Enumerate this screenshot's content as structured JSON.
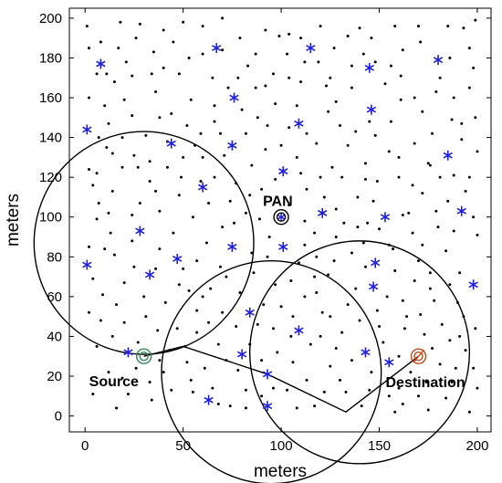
{
  "chart_data": {
    "type": "scatter",
    "xlabel": "meters",
    "ylabel": "meters",
    "xlim": [
      -8,
      207
    ],
    "ylim": [
      -8,
      205
    ],
    "xticks": [
      0,
      50,
      100,
      150,
      200
    ],
    "yticks": [
      0,
      20,
      40,
      60,
      80,
      100,
      120,
      140,
      160,
      180,
      200
    ],
    "grid": false,
    "colors": {
      "dots": "#000000",
      "stars": "#1f1fe0",
      "source": "#2e8b57",
      "destination": "#c04a1a",
      "pan": "#000000",
      "lines": "#000000"
    },
    "stars": [
      [
        8,
        177
      ],
      [
        1,
        144
      ],
      [
        1,
        76
      ],
      [
        28,
        93
      ],
      [
        33,
        71
      ],
      [
        47,
        79
      ],
      [
        44,
        137
      ],
      [
        60,
        115
      ],
      [
        67,
        185
      ],
      [
        76,
        160
      ],
      [
        75,
        136
      ],
      [
        75,
        85
      ],
      [
        84,
        52
      ],
      [
        80,
        31
      ],
      [
        63,
        8
      ],
      [
        93,
        5
      ],
      [
        93,
        21
      ],
      [
        101,
        123
      ],
      [
        101,
        85
      ],
      [
        109,
        43
      ],
      [
        109,
        147
      ],
      [
        115,
        185
      ],
      [
        121,
        102
      ],
      [
        145,
        175
      ],
      [
        146,
        154
      ],
      [
        153,
        100
      ],
      [
        148,
        77
      ],
      [
        147,
        65
      ],
      [
        143,
        32
      ],
      [
        155,
        27
      ],
      [
        180,
        179
      ],
      [
        185,
        131
      ],
      [
        192,
        103
      ],
      [
        198,
        66
      ],
      [
        22,
        32
      ]
    ],
    "circles": [
      {
        "cx": 30,
        "cy": 87,
        "r": 56
      },
      {
        "cx": 95,
        "cy": 22,
        "r": 56
      },
      {
        "cx": 140,
        "cy": 32,
        "r": 56
      }
    ],
    "route": [
      [
        30,
        30
      ],
      [
        50,
        35
      ],
      [
        93,
        21
      ],
      [
        133,
        2
      ],
      [
        170,
        30
      ]
    ],
    "source": {
      "x": 30,
      "y": 30,
      "label": "Source"
    },
    "destination": {
      "x": 170,
      "y": 30,
      "label": "Destination"
    },
    "pan": {
      "x": 100,
      "y": 100,
      "label": "PAN"
    },
    "dots": [
      [
        1,
        196
      ],
      [
        8,
        188
      ],
      [
        15,
        168
      ],
      [
        20,
        159
      ],
      [
        24,
        151
      ],
      [
        24,
        171
      ],
      [
        27,
        125
      ],
      [
        33,
        118
      ],
      [
        42,
        125
      ],
      [
        50,
        130
      ],
      [
        34,
        172
      ],
      [
        40,
        175
      ],
      [
        53,
        180
      ],
      [
        59,
        142
      ],
      [
        66,
        148
      ],
      [
        73,
        165
      ],
      [
        83,
        176
      ],
      [
        87,
        165
      ],
      [
        93,
        146
      ],
      [
        100,
        136
      ],
      [
        99,
        191
      ],
      [
        103,
        182
      ],
      [
        110,
        190
      ],
      [
        119,
        178
      ],
      [
        123,
        166
      ],
      [
        128,
        158
      ],
      [
        131,
        120
      ],
      [
        134,
        136
      ],
      [
        143,
        127
      ],
      [
        148,
        141
      ],
      [
        156,
        148
      ],
      [
        161,
        171
      ],
      [
        168,
        137
      ],
      [
        176,
        126
      ],
      [
        181,
        120
      ],
      [
        187,
        149
      ],
      [
        193,
        195
      ],
      [
        199,
        199
      ],
      [
        196,
        185
      ],
      [
        192,
        147
      ],
      [
        188,
        121
      ],
      [
        172,
        112
      ],
      [
        162,
        101
      ],
      [
        155,
        86
      ],
      [
        139,
        95
      ],
      [
        128,
        90
      ],
      [
        118,
        80
      ],
      [
        109,
        77
      ],
      [
        105,
        68
      ],
      [
        118,
        62
      ],
      [
        125,
        50
      ],
      [
        134,
        56
      ],
      [
        143,
        75
      ],
      [
        157,
        84
      ],
      [
        162,
        58
      ],
      [
        171,
        51
      ],
      [
        176,
        72
      ],
      [
        184,
        83
      ],
      [
        190,
        57
      ],
      [
        194,
        33
      ],
      [
        187,
        17
      ],
      [
        174,
        17
      ],
      [
        162,
        6
      ],
      [
        155,
        10
      ],
      [
        145,
        13
      ],
      [
        136,
        28
      ],
      [
        125,
        25
      ],
      [
        113,
        18
      ],
      [
        106,
        27
      ],
      [
        98,
        32
      ],
      [
        88,
        46
      ],
      [
        77,
        45
      ],
      [
        68,
        36
      ],
      [
        61,
        24
      ],
      [
        55,
        12
      ],
      [
        44,
        13
      ],
      [
        33,
        17
      ],
      [
        22,
        11
      ],
      [
        12,
        22
      ],
      [
        6,
        35
      ],
      [
        2,
        52
      ],
      [
        9,
        61
      ],
      [
        15,
        81
      ],
      [
        6,
        99
      ],
      [
        14,
        113
      ],
      [
        6,
        122
      ],
      [
        11,
        135
      ],
      [
        19,
        140
      ],
      [
        28,
        107
      ],
      [
        38,
        103
      ],
      [
        45,
        92
      ],
      [
        53,
        63
      ],
      [
        57,
        53
      ],
      [
        41,
        57
      ],
      [
        30,
        60
      ],
      [
        20,
        47
      ],
      [
        64,
        64
      ],
      [
        69,
        75
      ],
      [
        82,
        102
      ],
      [
        90,
        114
      ],
      [
        113,
        114
      ],
      [
        118,
        137
      ],
      [
        124,
        153
      ],
      [
        138,
        143
      ],
      [
        149,
        118
      ],
      [
        167,
        92
      ],
      [
        173,
        41
      ],
      [
        184,
        9
      ],
      [
        196,
        2
      ],
      [
        150,
        45
      ],
      [
        131,
        42
      ],
      [
        120,
        40
      ],
      [
        91,
        56
      ],
      [
        82,
        13
      ],
      [
        74,
        5
      ],
      [
        37,
        43
      ],
      [
        16,
        4
      ],
      [
        4,
        11
      ],
      [
        60,
        196
      ],
      [
        45,
        188
      ],
      [
        28,
        197
      ],
      [
        17,
        185
      ],
      [
        136,
        176
      ],
      [
        146,
        190
      ],
      [
        158,
        196
      ],
      [
        171,
        188
      ],
      [
        181,
        170
      ],
      [
        196,
        165
      ],
      [
        200,
        133
      ],
      [
        200,
        91
      ],
      [
        199,
        44
      ],
      [
        2,
        160
      ],
      [
        12,
        147
      ],
      [
        38,
        150
      ],
      [
        54,
        159
      ],
      [
        85,
        126
      ],
      [
        94,
        90
      ],
      [
        70,
        95
      ],
      [
        55,
        100
      ],
      [
        112,
        98
      ],
      [
        128,
        104
      ],
      [
        136,
        82
      ],
      [
        168,
        68
      ],
      [
        160,
        120
      ],
      [
        108,
        156
      ],
      [
        96,
        172
      ],
      [
        79,
        190
      ],
      [
        65,
        170
      ],
      [
        120,
        196
      ],
      [
        140,
        195
      ],
      [
        185,
        196
      ],
      [
        2,
        185
      ],
      [
        25,
        131
      ],
      [
        48,
        111
      ],
      [
        62,
        87
      ],
      [
        86,
        72
      ],
      [
        100,
        55
      ],
      [
        115,
        36
      ],
      [
        133,
        12
      ],
      [
        152,
        37
      ],
      [
        166,
        22
      ],
      [
        178,
        58
      ],
      [
        191,
        72
      ],
      [
        180,
        95
      ],
      [
        172,
        153
      ],
      [
        153,
        167
      ],
      [
        127,
        185
      ],
      [
        104,
        170
      ],
      [
        88,
        150
      ],
      [
        71,
        131
      ],
      [
        52,
        146
      ],
      [
        36,
        163
      ],
      [
        21,
        178
      ],
      [
        10,
        156
      ],
      [
        7,
        107
      ],
      [
        20,
        67
      ],
      [
        31,
        50
      ],
      [
        43,
        33
      ],
      [
        57,
        42
      ],
      [
        70,
        52
      ],
      [
        79,
        62
      ],
      [
        93,
        80
      ],
      [
        112,
        86
      ],
      [
        124,
        71
      ],
      [
        138,
        64
      ],
      [
        149,
        53
      ],
      [
        163,
        44
      ],
      [
        177,
        34
      ],
      [
        189,
        24
      ],
      [
        200,
        14
      ],
      [
        196,
        120
      ],
      [
        185,
        108
      ],
      [
        167,
        116
      ],
      [
        147,
        108
      ],
      [
        126,
        125
      ],
      [
        108,
        130
      ],
      [
        92,
        134
      ],
      [
        77,
        117
      ],
      [
        63,
        107
      ],
      [
        50,
        74
      ],
      [
        38,
        84
      ],
      [
        25,
        75
      ],
      [
        13,
        92
      ],
      [
        4,
        69
      ],
      [
        16,
        56
      ],
      [
        27,
        37
      ],
      [
        40,
        22
      ],
      [
        52,
        27
      ],
      [
        65,
        14
      ],
      [
        78,
        23
      ],
      [
        90,
        10
      ],
      [
        103,
        13
      ],
      [
        117,
        5
      ],
      [
        130,
        18
      ],
      [
        141,
        5
      ],
      [
        160,
        14
      ],
      [
        175,
        3
      ],
      [
        191,
        40
      ],
      [
        182,
        46
      ],
      [
        170,
        78
      ],
      [
        158,
        73
      ],
      [
        142,
        87
      ],
      [
        132,
        97
      ],
      [
        122,
        110
      ],
      [
        110,
        122
      ],
      [
        97,
        119
      ],
      [
        84,
        111
      ],
      [
        76,
        97
      ],
      [
        66,
        120
      ],
      [
        56,
        136
      ],
      [
        44,
        152
      ],
      [
        31,
        141
      ],
      [
        19,
        125
      ],
      [
        7,
        140
      ],
      [
        11,
        172
      ],
      [
        26,
        190
      ],
      [
        48,
        172
      ],
      [
        70,
        184
      ],
      [
        92,
        194
      ],
      [
        112,
        178
      ],
      [
        136,
        165
      ],
      [
        162,
        184
      ],
      [
        186,
        180
      ],
      [
        198,
        175
      ],
      [
        177,
        142
      ],
      [
        160,
        130
      ],
      [
        143,
        119
      ],
      [
        165,
        102
      ],
      [
        150,
        94
      ],
      [
        117,
        92
      ],
      [
        104,
        106
      ],
      [
        89,
        99
      ],
      [
        74,
        108
      ],
      [
        59,
        118
      ],
      [
        42,
        138
      ],
      [
        33,
        128
      ],
      [
        57,
        78
      ],
      [
        47,
        44
      ],
      [
        34,
        8
      ],
      [
        19,
        19
      ],
      [
        8,
        48
      ],
      [
        2,
        85
      ],
      [
        2,
        124
      ],
      [
        66,
        156
      ],
      [
        82,
        142
      ],
      [
        97,
        157
      ],
      [
        113,
        142
      ],
      [
        130,
        146
      ],
      [
        145,
        148
      ],
      [
        161,
        159
      ],
      [
        179,
        163
      ],
      [
        192,
        139
      ],
      [
        175,
        127
      ],
      [
        155,
        133
      ],
      [
        139,
        110
      ],
      [
        120,
        120
      ],
      [
        104,
        145
      ],
      [
        87,
        182
      ],
      [
        70,
        200
      ],
      [
        50,
        198
      ],
      [
        35,
        183
      ],
      [
        121,
        52
      ],
      [
        128,
        34
      ],
      [
        140,
        48
      ],
      [
        112,
        60
      ],
      [
        97,
        66
      ],
      [
        85,
        82
      ],
      [
        72,
        70
      ],
      [
        63,
        47
      ],
      [
        51,
        35
      ],
      [
        90,
        28
      ],
      [
        105,
        40
      ],
      [
        160,
        30
      ],
      [
        181,
        26
      ],
      [
        193,
        50
      ],
      [
        186,
        66
      ],
      [
        172,
        86
      ],
      [
        179,
        103
      ],
      [
        194,
        113
      ],
      [
        168,
        160
      ],
      [
        148,
        178
      ],
      [
        134,
        191
      ],
      [
        110,
        168
      ],
      [
        78,
        170
      ],
      [
        60,
        182
      ],
      [
        40,
        194
      ],
      [
        18,
        198
      ],
      [
        6,
        172
      ],
      [
        14,
        132
      ],
      [
        24,
        101
      ],
      [
        36,
        113
      ],
      [
        49,
        120
      ],
      [
        60,
        130
      ],
      [
        69,
        142
      ],
      [
        80,
        154
      ],
      [
        92,
        166
      ],
      [
        104,
        192
      ],
      [
        125,
        170
      ],
      [
        142,
        182
      ],
      [
        156,
        176
      ],
      [
        170,
        196
      ],
      [
        188,
        160
      ],
      [
        199,
        150
      ],
      [
        198,
        100
      ],
      [
        188,
        93
      ],
      [
        176,
        64
      ],
      [
        164,
        50
      ],
      [
        154,
        60
      ],
      [
        144,
        97
      ],
      [
        127,
        78
      ],
      [
        117,
        70
      ],
      [
        106,
        50
      ],
      [
        96,
        44
      ],
      [
        84,
        36
      ],
      [
        72,
        28
      ],
      [
        60,
        60
      ],
      [
        48,
        66
      ],
      [
        36,
        74
      ],
      [
        24,
        88
      ],
      [
        12,
        102
      ],
      [
        4,
        116
      ],
      [
        10,
        84
      ],
      [
        14,
        40
      ],
      [
        26,
        24
      ],
      [
        38,
        28
      ],
      [
        54,
        18
      ],
      [
        68,
        6
      ],
      [
        82,
        4
      ],
      [
        96,
        14
      ],
      [
        108,
        4
      ],
      [
        122,
        12
      ],
      [
        146,
        22
      ],
      [
        158,
        2
      ],
      [
        170,
        10
      ],
      [
        186,
        38
      ],
      [
        198,
        24
      ]
    ]
  }
}
